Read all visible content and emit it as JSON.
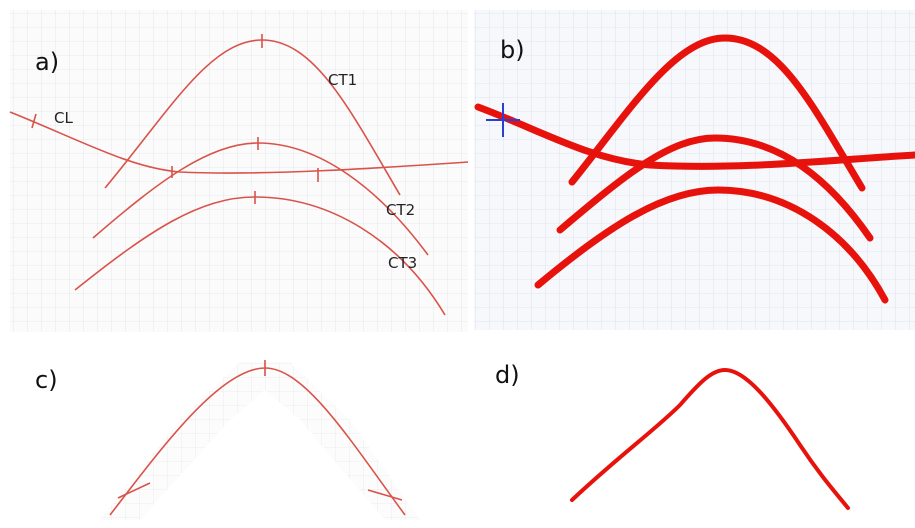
{
  "panels": [
    {
      "label": "a)",
      "annotations": [
        "CT1",
        "CT2",
        "CT3",
        "CL"
      ]
    },
    {
      "label": "b)"
    },
    {
      "label": "c)"
    },
    {
      "label": "d)"
    }
  ]
}
